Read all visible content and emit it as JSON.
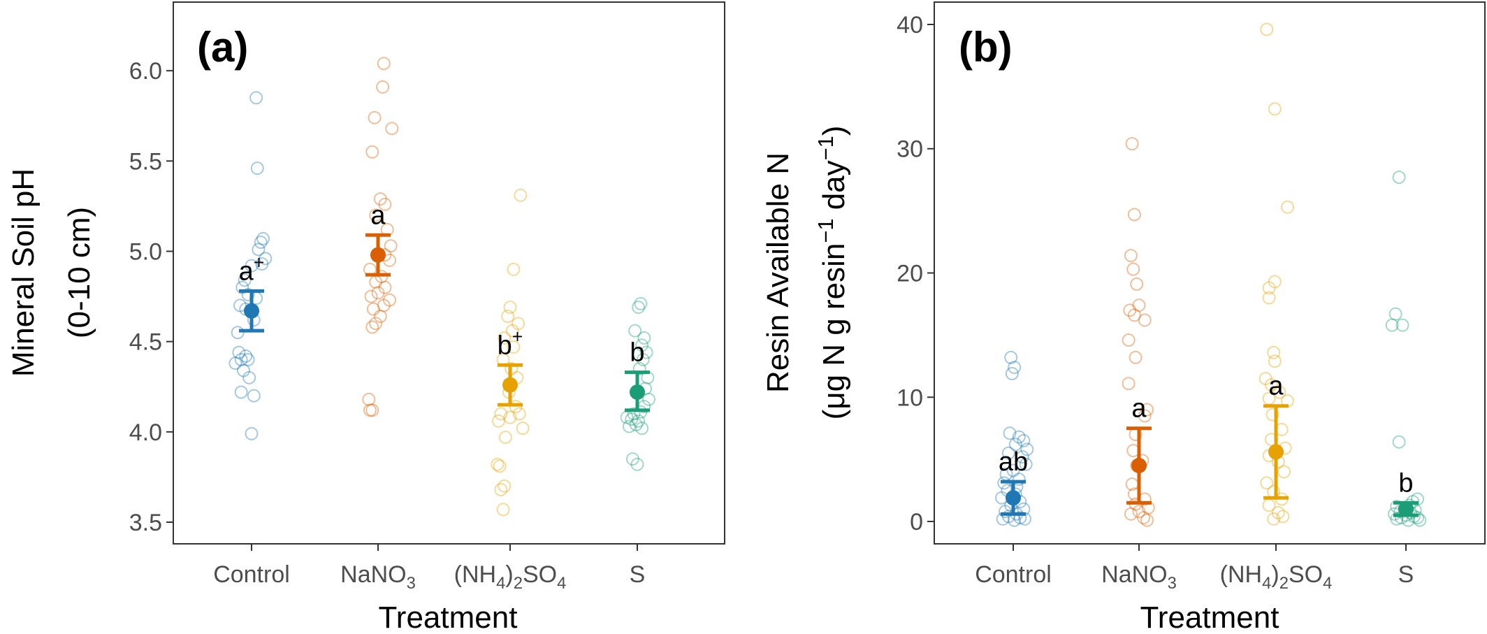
{
  "colors": {
    "Control": "#1f78b4",
    "NaNO3": "#d95f02",
    "NH4SO4": "#e6a200",
    "S": "#1b9e77"
  },
  "chart_data": [
    {
      "type": "scatter",
      "panel": "(a)",
      "xlabel": "Treatment",
      "ylabel_line1": "Mineral Soil pH",
      "ylabel_line2": "(0-10 cm)",
      "ylim": [
        3.38,
        6.38
      ],
      "yticks": [
        3.5,
        4.0,
        4.5,
        5.0,
        5.5,
        6.0
      ],
      "ytick_labels": [
        "3.5",
        "4.0",
        "4.5",
        "5.0",
        "5.5",
        "6.0"
      ],
      "groups": [
        {
          "key": "Control",
          "mean": 4.67,
          "lower": 4.56,
          "upper": 4.78,
          "letter": "a",
          "letter_sup": "+",
          "points": [
            [
              0.04,
              5.85
            ],
            [
              0.05,
              5.46
            ],
            [
              0.1,
              5.07
            ],
            [
              0.08,
              5.05
            ],
            [
              0.06,
              5.01
            ],
            [
              0.12,
              4.96
            ],
            [
              0.09,
              4.93
            ],
            [
              0.0,
              4.92
            ],
            [
              -0.06,
              4.84
            ],
            [
              -0.08,
              4.8
            ],
            [
              -0.03,
              4.76
            ],
            [
              0.04,
              4.74
            ],
            [
              -0.1,
              4.7
            ],
            [
              -0.05,
              4.68
            ],
            [
              0.02,
              4.62
            ],
            [
              -0.12,
              4.55
            ],
            [
              -0.11,
              4.44
            ],
            [
              -0.05,
              4.42
            ],
            [
              -0.09,
              4.4
            ],
            [
              -0.03,
              4.4
            ],
            [
              -0.14,
              4.38
            ],
            [
              -0.07,
              4.34
            ],
            [
              -0.02,
              4.3
            ],
            [
              -0.09,
              4.22
            ],
            [
              0.02,
              4.2
            ],
            [
              0.0,
              3.99
            ]
          ]
        },
        {
          "key": "NaNO3",
          "mean": 4.98,
          "lower": 4.87,
          "upper": 5.09,
          "letter": "a",
          "letter_sup": "",
          "points": [
            [
              0.05,
              6.04
            ],
            [
              0.04,
              5.91
            ],
            [
              -0.03,
              5.74
            ],
            [
              0.12,
              5.68
            ],
            [
              -0.05,
              5.55
            ],
            [
              0.02,
              5.29
            ],
            [
              0.06,
              5.26
            ],
            [
              -0.02,
              5.2
            ],
            [
              0.08,
              5.12
            ],
            [
              0.11,
              5.03
            ],
            [
              0.06,
              4.98
            ],
            [
              0.1,
              4.95
            ],
            [
              -0.07,
              4.9
            ],
            [
              0.03,
              4.86
            ],
            [
              -0.02,
              4.83
            ],
            [
              0.06,
              4.8
            ],
            [
              0.0,
              4.77
            ],
            [
              -0.06,
              4.75
            ],
            [
              0.1,
              4.73
            ],
            [
              0.05,
              4.7
            ],
            [
              -0.04,
              4.68
            ],
            [
              0.02,
              4.64
            ],
            [
              -0.02,
              4.6
            ],
            [
              -0.05,
              4.58
            ],
            [
              -0.08,
              4.18
            ],
            [
              -0.07,
              4.12
            ],
            [
              -0.05,
              4.12
            ]
          ]
        },
        {
          "key": "NH4SO4",
          "mean": 4.26,
          "lower": 4.15,
          "upper": 4.37,
          "letter": "b",
          "letter_sup": "+",
          "points": [
            [
              0.09,
              5.31
            ],
            [
              0.03,
              4.9
            ],
            [
              0.0,
              4.69
            ],
            [
              -0.02,
              4.64
            ],
            [
              0.07,
              4.6
            ],
            [
              0.02,
              4.56
            ],
            [
              -0.05,
              4.52
            ],
            [
              0.03,
              4.47
            ],
            [
              -0.06,
              4.4
            ],
            [
              0.01,
              4.35
            ],
            [
              0.06,
              4.3
            ],
            [
              -0.01,
              4.22
            ],
            [
              0.05,
              4.14
            ],
            [
              -0.08,
              4.1
            ],
            [
              0.0,
              4.08
            ],
            [
              -0.1,
              4.06
            ],
            [
              0.11,
              4.02
            ],
            [
              0.08,
              4.1
            ],
            [
              -0.04,
              3.97
            ],
            [
              -0.11,
              3.82
            ],
            [
              -0.09,
              3.81
            ],
            [
              -0.05,
              3.7
            ],
            [
              -0.08,
              3.68
            ],
            [
              -0.06,
              3.57
            ]
          ]
        },
        {
          "key": "S",
          "mean": 4.22,
          "lower": 4.12,
          "upper": 4.33,
          "letter": "b",
          "letter_sup": "",
          "points": [
            [
              0.03,
              4.71
            ],
            [
              0.01,
              4.69
            ],
            [
              -0.02,
              4.56
            ],
            [
              0.06,
              4.52
            ],
            [
              0.04,
              4.48
            ],
            [
              0.08,
              4.44
            ],
            [
              0.05,
              4.4
            ],
            [
              0.02,
              4.35
            ],
            [
              0.09,
              4.3
            ],
            [
              0.07,
              4.24
            ],
            [
              0.1,
              4.18
            ],
            [
              0.06,
              4.14
            ],
            [
              0.03,
              4.11
            ],
            [
              -0.03,
              4.1
            ],
            [
              -0.09,
              4.08
            ],
            [
              -0.05,
              4.07
            ],
            [
              0.01,
              4.06
            ],
            [
              -0.01,
              4.04
            ],
            [
              0.04,
              4.02
            ],
            [
              -0.07,
              4.03
            ],
            [
              -0.04,
              3.85
            ],
            [
              0.0,
              3.82
            ]
          ]
        }
      ]
    },
    {
      "type": "scatter",
      "panel": "(b)",
      "xlabel": "Treatment",
      "ylabel_line1": "Resin Available N",
      "ylabel_line2_prefix": "(μg N g resin",
      "ylabel_line2_sup1": "−1",
      "ylabel_line2_mid": " day",
      "ylabel_line2_sup2": "−1",
      "ylabel_line2_suffix": ")",
      "ylim": [
        -1.8,
        41.8
      ],
      "yticks": [
        0,
        10,
        20,
        30,
        40
      ],
      "ytick_labels": [
        "0",
        "10",
        "20",
        "30",
        "40"
      ],
      "groups": [
        {
          "key": "Control",
          "mean": 1.9,
          "lower": 0.6,
          "upper": 3.2,
          "letter": "ab",
          "letter_sup": "",
          "points": [
            [
              -0.02,
              13.2
            ],
            [
              0.01,
              12.4
            ],
            [
              -0.01,
              11.9
            ],
            [
              -0.03,
              7.1
            ],
            [
              0.05,
              6.8
            ],
            [
              0.09,
              6.5
            ],
            [
              0.02,
              6.2
            ],
            [
              0.12,
              5.8
            ],
            [
              -0.04,
              5.5
            ],
            [
              0.08,
              5.2
            ],
            [
              0.11,
              4.6
            ],
            [
              0.0,
              4.1
            ],
            [
              -0.06,
              3.8
            ],
            [
              0.05,
              3.4
            ],
            [
              -0.08,
              3.1
            ],
            [
              0.03,
              2.8
            ],
            [
              -0.05,
              2.5
            ],
            [
              0.02,
              2.2
            ],
            [
              -0.1,
              1.9
            ],
            [
              0.06,
              1.6
            ],
            [
              -0.02,
              1.3
            ],
            [
              0.09,
              1.0
            ],
            [
              -0.07,
              0.8
            ],
            [
              0.03,
              0.6
            ],
            [
              -0.04,
              0.4
            ],
            [
              0.06,
              0.3
            ],
            [
              -0.09,
              0.2
            ],
            [
              0.01,
              0.1
            ],
            [
              0.1,
              0.2
            ]
          ]
        },
        {
          "key": "NaNO3",
          "mean": 4.5,
          "lower": 1.5,
          "upper": 7.5,
          "letter": "a",
          "letter_sup": "",
          "points": [
            [
              -0.06,
              30.4
            ],
            [
              -0.04,
              24.7
            ],
            [
              -0.07,
              21.4
            ],
            [
              -0.05,
              20.3
            ],
            [
              -0.02,
              19.1
            ],
            [
              -0.08,
              17.0
            ],
            [
              0.0,
              17.4
            ],
            [
              -0.04,
              16.6
            ],
            [
              0.05,
              16.2
            ],
            [
              -0.09,
              14.6
            ],
            [
              -0.03,
              13.2
            ],
            [
              -0.09,
              11.1
            ],
            [
              0.07,
              9.0
            ],
            [
              0.05,
              8.5
            ],
            [
              -0.03,
              7.0
            ],
            [
              -0.05,
              5.7
            ],
            [
              0.03,
              4.9
            ],
            [
              -0.02,
              4.5
            ],
            [
              -0.06,
              3.0
            ],
            [
              -0.04,
              2.2
            ],
            [
              0.05,
              1.8
            ],
            [
              -0.03,
              1.4
            ],
            [
              0.08,
              1.1
            ],
            [
              0.0,
              0.8
            ],
            [
              -0.07,
              0.6
            ],
            [
              0.04,
              0.3
            ],
            [
              0.07,
              0.1
            ]
          ]
        },
        {
          "key": "NH4SO4",
          "mean": 5.6,
          "lower": 1.9,
          "upper": 9.3,
          "letter": "a",
          "letter_sup": "",
          "points": [
            [
              -0.08,
              39.6
            ],
            [
              -0.01,
              33.2
            ],
            [
              0.1,
              25.3
            ],
            [
              -0.06,
              18.8
            ],
            [
              -0.01,
              19.3
            ],
            [
              -0.06,
              18.0
            ],
            [
              -0.02,
              13.6
            ],
            [
              -0.01,
              12.9
            ],
            [
              -0.09,
              11.5
            ],
            [
              -0.04,
              11.0
            ],
            [
              0.03,
              10.4
            ],
            [
              -0.06,
              9.9
            ],
            [
              0.1,
              9.7
            ],
            [
              -0.03,
              8.6
            ],
            [
              0.05,
              7.4
            ],
            [
              -0.04,
              6.6
            ],
            [
              0.08,
              5.9
            ],
            [
              -0.06,
              5.3
            ],
            [
              0.02,
              4.8
            ],
            [
              0.07,
              4.0
            ],
            [
              -0.08,
              3.1
            ],
            [
              -0.02,
              2.4
            ],
            [
              0.05,
              1.8
            ],
            [
              -0.06,
              1.3
            ],
            [
              0.02,
              0.7
            ],
            [
              0.06,
              0.4
            ],
            [
              -0.02,
              0.2
            ]
          ]
        },
        {
          "key": "S",
          "mean": 1.0,
          "lower": 0.5,
          "upper": 1.5,
          "letter": "b",
          "letter_sup": "",
          "points": [
            [
              -0.06,
              27.7
            ],
            [
              -0.09,
              16.7
            ],
            [
              -0.12,
              15.8
            ],
            [
              -0.03,
              15.8
            ],
            [
              -0.06,
              6.4
            ],
            [
              0.1,
              1.8
            ],
            [
              0.06,
              1.6
            ],
            [
              0.03,
              1.3
            ],
            [
              -0.08,
              1.2
            ],
            [
              -0.01,
              1.0
            ],
            [
              0.08,
              0.9
            ],
            [
              -0.05,
              0.8
            ],
            [
              0.04,
              0.7
            ],
            [
              -0.1,
              0.6
            ],
            [
              0.0,
              0.5
            ],
            [
              0.07,
              0.4
            ],
            [
              -0.04,
              0.3
            ],
            [
              0.1,
              0.3
            ],
            [
              -0.08,
              0.2
            ],
            [
              0.02,
              0.1
            ],
            [
              0.12,
              0.1
            ]
          ]
        }
      ]
    }
  ],
  "x_tick_labels": {
    "control": "Control",
    "nano3_a": "NaNO",
    "nano3_b": "3",
    "nh4_a": "(NH",
    "nh4_b": "4",
    "nh4_c": ")",
    "nh4_d": "2",
    "nh4_e": "SO",
    "nh4_f": "4",
    "s": "S"
  }
}
